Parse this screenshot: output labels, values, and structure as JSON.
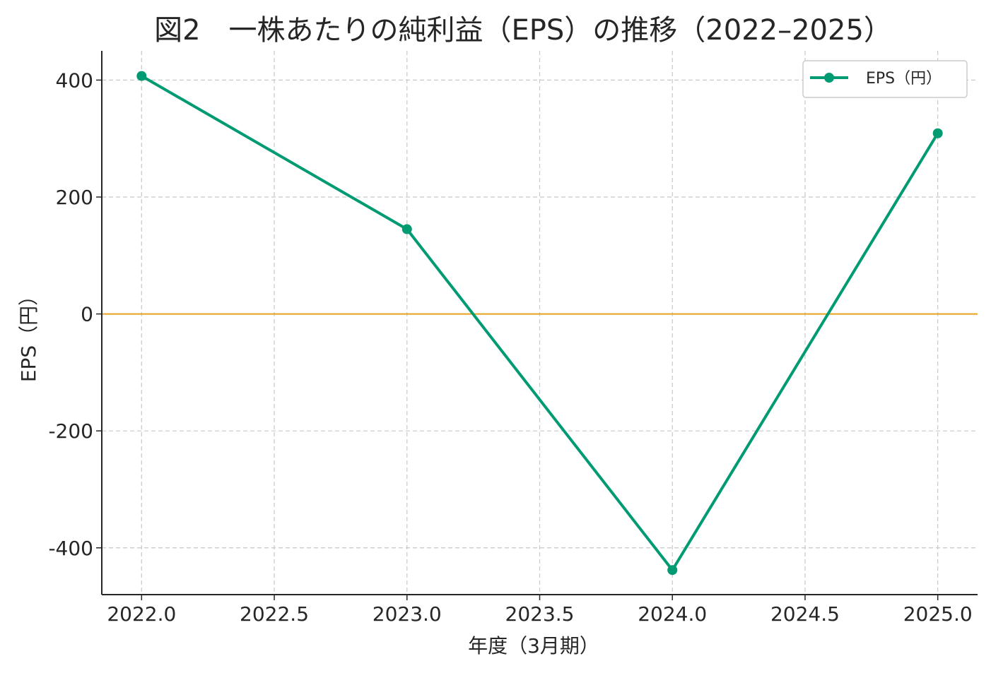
{
  "chart_data": {
    "type": "line",
    "title": "図2　一株あたりの純利益（EPS）の推移（2022–2025）",
    "xlabel": "年度（3月期）",
    "ylabel": "EPS（円）",
    "x": [
      2022,
      2023,
      2024,
      2025
    ],
    "series": [
      {
        "name": "EPS（円）",
        "values": [
          407,
          145,
          -438,
          309
        ],
        "color": "#009b72"
      }
    ],
    "xlim": [
      2021.85,
      2025.15
    ],
    "ylim": [
      -480,
      450
    ],
    "xticks": [
      2022.0,
      2022.5,
      2023.0,
      2023.5,
      2024.0,
      2024.5,
      2025.0
    ],
    "xtick_labels": [
      "2022.0",
      "2022.5",
      "2023.0",
      "2023.5",
      "2024.0",
      "2024.5",
      "2025.0"
    ],
    "yticks": [
      -400,
      -200,
      0,
      200,
      400
    ],
    "ytick_labels": [
      "-400",
      "-200",
      "0",
      "200",
      "400"
    ],
    "zero_line_color": "#e6a11e",
    "grid": true,
    "legend_position": "top-right"
  }
}
